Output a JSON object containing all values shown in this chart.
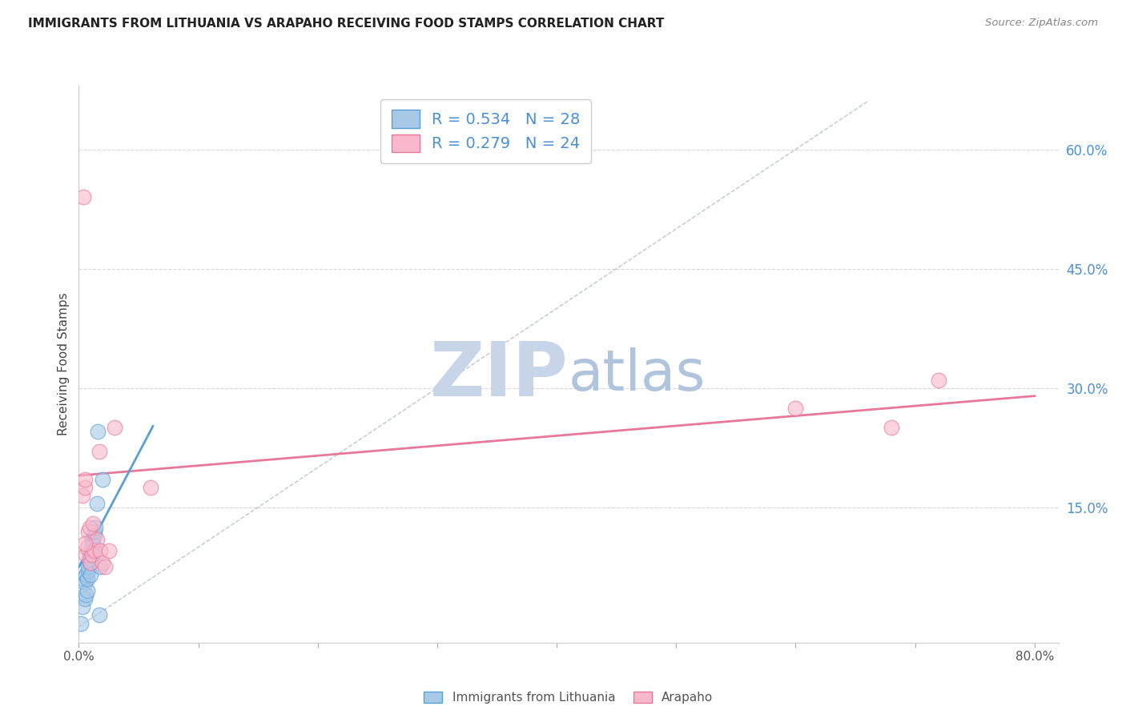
{
  "title": "IMMIGRANTS FROM LITHUANIA VS ARAPAHO RECEIVING FOOD STAMPS CORRELATION CHART",
  "source": "Source: ZipAtlas.com",
  "ylabel": "Receiving Food Stamps",
  "legend_label1": "Immigrants from Lithuania",
  "legend_label2": "Arapaho",
  "r1": 0.534,
  "n1": 28,
  "r2": 0.279,
  "n2": 24,
  "xlim": [
    0.0,
    0.82
  ],
  "ylim": [
    -0.02,
    0.68
  ],
  "xticks": [
    0.0,
    0.1,
    0.2,
    0.3,
    0.4,
    0.5,
    0.6,
    0.7,
    0.8
  ],
  "yticks_right": [
    0.15,
    0.3,
    0.45,
    0.6
  ],
  "ytick_labels_right": [
    "15.0%",
    "30.0%",
    "45.0%",
    "60.0%"
  ],
  "color_blue": "#a8c8e8",
  "color_pink": "#f9b8cc",
  "color_blue_edge": "#5a9fd4",
  "color_pink_edge": "#e8789a",
  "color_blue_text": "#4a90d9",
  "color_pink_text": "#e8789a",
  "color_legend_text": "#4a90d9",
  "background": "#ffffff",
  "grid_color": "#d8d8d8",
  "blue_dots_x": [
    0.003,
    0.004,
    0.005,
    0.005,
    0.006,
    0.006,
    0.007,
    0.007,
    0.008,
    0.008,
    0.009,
    0.009,
    0.01,
    0.01,
    0.01,
    0.011,
    0.011,
    0.012,
    0.012,
    0.013,
    0.013,
    0.014,
    0.015,
    0.016,
    0.017,
    0.018,
    0.02,
    0.002
  ],
  "blue_dots_y": [
    0.025,
    0.06,
    0.035,
    0.055,
    0.04,
    0.065,
    0.045,
    0.06,
    0.07,
    0.075,
    0.08,
    0.09,
    0.065,
    0.085,
    0.09,
    0.1,
    0.11,
    0.095,
    0.105,
    0.115,
    0.12,
    0.125,
    0.155,
    0.245,
    0.015,
    0.075,
    0.185,
    0.004
  ],
  "pink_dots_x": [
    0.003,
    0.004,
    0.005,
    0.005,
    0.006,
    0.007,
    0.008,
    0.009,
    0.01,
    0.011,
    0.012,
    0.013,
    0.015,
    0.017,
    0.018,
    0.02,
    0.022,
    0.025,
    0.03,
    0.06,
    0.6,
    0.68,
    0.72,
    0.005
  ],
  "pink_dots_y": [
    0.165,
    0.54,
    0.175,
    0.185,
    0.09,
    0.1,
    0.12,
    0.125,
    0.08,
    0.09,
    0.13,
    0.095,
    0.11,
    0.22,
    0.095,
    0.08,
    0.075,
    0.095,
    0.25,
    0.175,
    0.275,
    0.25,
    0.31,
    0.105
  ],
  "blue_line_x": [
    0.0,
    0.062
  ],
  "blue_line_y": [
    0.075,
    0.252
  ],
  "pink_line_x": [
    0.0,
    0.8
  ],
  "pink_line_y": [
    0.19,
    0.29
  ],
  "diag_line_x": [
    0.0,
    0.66
  ],
  "diag_line_y": [
    0.0,
    0.66
  ],
  "watermark_zip": "ZIP",
  "watermark_atlas": "atlas",
  "watermark_color_zip": "#c8d4e8",
  "watermark_color_atlas": "#b0c4de",
  "watermark_fontsize": 68
}
